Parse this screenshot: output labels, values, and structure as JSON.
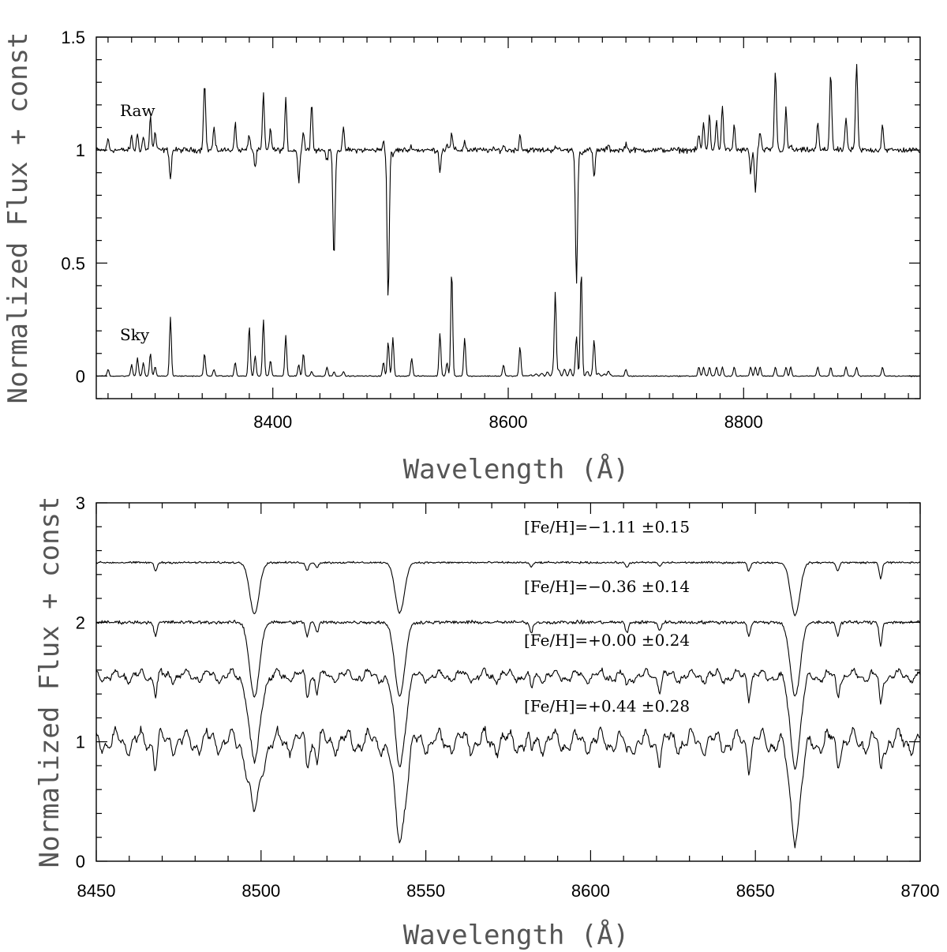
{
  "chart_data": [
    {
      "type": "line",
      "title": "",
      "xlabel": "Wavelength (Å)",
      "ylabel": "Normalized Flux + const",
      "xlim": [
        8250,
        8950
      ],
      "ylim": [
        -0.1,
        1.5
      ],
      "xticks": [
        8400,
        8600,
        8800
      ],
      "yticks": [
        0,
        0.5,
        1,
        1.5
      ],
      "xtick_labels": [
        "8400",
        "8600",
        "8800"
      ],
      "ytick_labels": [
        "0",
        "0.5",
        "1",
        "1.5"
      ],
      "grid": false,
      "series": [
        {
          "name": "Raw",
          "continuum": 1.0,
          "x": [
            8260,
            8280,
            8285,
            8290,
            8296,
            8300,
            8313,
            8342,
            8350,
            8368,
            8380,
            8385,
            8392,
            8398,
            8411,
            8422,
            8426,
            8433,
            8446,
            8452,
            8460,
            8494,
            8498,
            8502,
            8518,
            8542,
            8548,
            8552,
            8563,
            8596,
            8610,
            8640,
            8658,
            8662,
            8673,
            8685,
            8700,
            8762,
            8766,
            8771,
            8777,
            8782,
            8792,
            8806,
            8810,
            8814,
            8827,
            8836,
            8840,
            8863,
            8874,
            8887,
            8896,
            8918
          ],
          "y": [
            1.05,
            1.06,
            1.07,
            1.06,
            1.15,
            1.08,
            0.87,
            1.3,
            1.1,
            1.12,
            1.07,
            0.92,
            1.25,
            1.1,
            1.22,
            0.86,
            1.08,
            1.22,
            0.95,
            0.52,
            1.09,
            1.04,
            0.34,
            0.97,
            1.02,
            0.91,
            1.03,
            1.07,
            1.04,
            1.02,
            1.07,
            1.02,
            0.42,
            0.98,
            0.87,
            1.02,
            1.03,
            1.07,
            1.12,
            1.16,
            1.14,
            1.2,
            1.11,
            0.9,
            0.81,
            1.08,
            1.35,
            1.18,
            1.02,
            1.12,
            1.34,
            1.15,
            1.38,
            1.12
          ]
        },
        {
          "name": "Sky",
          "continuum": 0.0,
          "x": [
            8260,
            8280,
            8285,
            8290,
            8296,
            8300,
            8313,
            8342,
            8350,
            8368,
            8380,
            8385,
            8392,
            8398,
            8411,
            8422,
            8426,
            8433,
            8446,
            8452,
            8460,
            8494,
            8498,
            8502,
            8518,
            8542,
            8548,
            8552,
            8563,
            8596,
            8610,
            8640,
            8658,
            8662,
            8673,
            8685,
            8700,
            8762,
            8766,
            8771,
            8777,
            8782,
            8792,
            8806,
            8810,
            8814,
            8827,
            8836,
            8840,
            8863,
            8874,
            8887,
            8896,
            8918
          ],
          "y": [
            0.03,
            0.05,
            0.08,
            0.06,
            0.1,
            0.04,
            0.26,
            0.1,
            0.03,
            0.06,
            0.22,
            0.09,
            0.25,
            0.07,
            0.18,
            0.05,
            0.1,
            0.02,
            0.04,
            0.02,
            0.02,
            0.06,
            0.15,
            0.17,
            0.08,
            0.19,
            0.06,
            0.47,
            0.17,
            0.05,
            0.13,
            0.37,
            0.15,
            0.44,
            0.15,
            0.02,
            0.03,
            0.04,
            0.04,
            0.04,
            0.04,
            0.04,
            0.04,
            0.04,
            0.04,
            0.04,
            0.04,
            0.04,
            0.04,
            0.04,
            0.04,
            0.04,
            0.04,
            0.04
          ]
        }
      ],
      "annotations": [
        "Raw",
        "Sky"
      ]
    },
    {
      "type": "line",
      "title": "",
      "xlabel": "Wavelength (Å)",
      "ylabel": "Normalized Flux + const",
      "xlim": [
        8450,
        8700
      ],
      "ylim": [
        0,
        3
      ],
      "xticks": [
        8450,
        8500,
        8550,
        8600,
        8650,
        8700
      ],
      "yticks": [
        0,
        1,
        2,
        3
      ],
      "xtick_labels": [
        "8450",
        "8500",
        "8550",
        "8600",
        "8650",
        "8700"
      ],
      "ytick_labels": [
        "0",
        "1",
        "2",
        "3"
      ],
      "grid": false,
      "series": [
        {
          "name": "[Fe/H]=−1.11  ±0.15",
          "continuum": 2.5,
          "x": [
            8498.0,
            8542.1,
            8662.1,
            8468.0,
            8514.0,
            8517.0,
            8582.0,
            8611.0,
            8621.0,
            8648.0,
            8675.0,
            8688.0
          ],
          "y": [
            2.07,
            2.08,
            2.06,
            2.43,
            2.43,
            2.46,
            2.46,
            2.46,
            2.47,
            2.43,
            2.43,
            2.37
          ]
        },
        {
          "name": "[Fe/H]=−0.36  ±0.14",
          "continuum": 2.0,
          "x": [
            8498.0,
            8542.1,
            8662.1,
            8468.0,
            8514.0,
            8517.0,
            8582.0,
            8611.0,
            8621.0,
            8648.0,
            8675.0,
            8688.0
          ],
          "y": [
            1.38,
            1.38,
            1.38,
            1.88,
            1.88,
            1.91,
            1.91,
            1.91,
            1.93,
            1.88,
            1.88,
            1.81
          ]
        },
        {
          "name": "[Fe/H]=+0.00  ±0.24",
          "continuum": 1.55,
          "x": [
            8498.0,
            8542.1,
            8662.1,
            8468.0,
            8514.0,
            8517.0,
            8582.0,
            8611.0,
            8621.0,
            8648.0,
            8675.0,
            8688.0
          ],
          "y": [
            0.82,
            0.82,
            0.83,
            1.4,
            1.39,
            1.43,
            1.43,
            1.43,
            1.45,
            1.39,
            1.39,
            1.3
          ]
        },
        {
          "name": "[Fe/H]=+0.44  ±0.28",
          "continuum": 1.0,
          "x": [
            8498.0,
            8542.1,
            8662.1,
            8468.0,
            8514.0,
            8517.0,
            8582.0,
            8611.0,
            8621.0,
            8648.0,
            8675.0,
            8688.0
          ],
          "y": [
            0.39,
            0.22,
            0.25,
            0.82,
            0.82,
            0.87,
            0.87,
            0.87,
            0.89,
            0.82,
            0.82,
            0.72
          ]
        }
      ],
      "annotations": [
        "[Fe/H]=−1.11  ±0.15",
        "[Fe/H]=−0.36  ±0.14",
        "[Fe/H]=+0.00  ±0.24",
        "[Fe/H]=+0.44  ±0.28"
      ]
    }
  ]
}
